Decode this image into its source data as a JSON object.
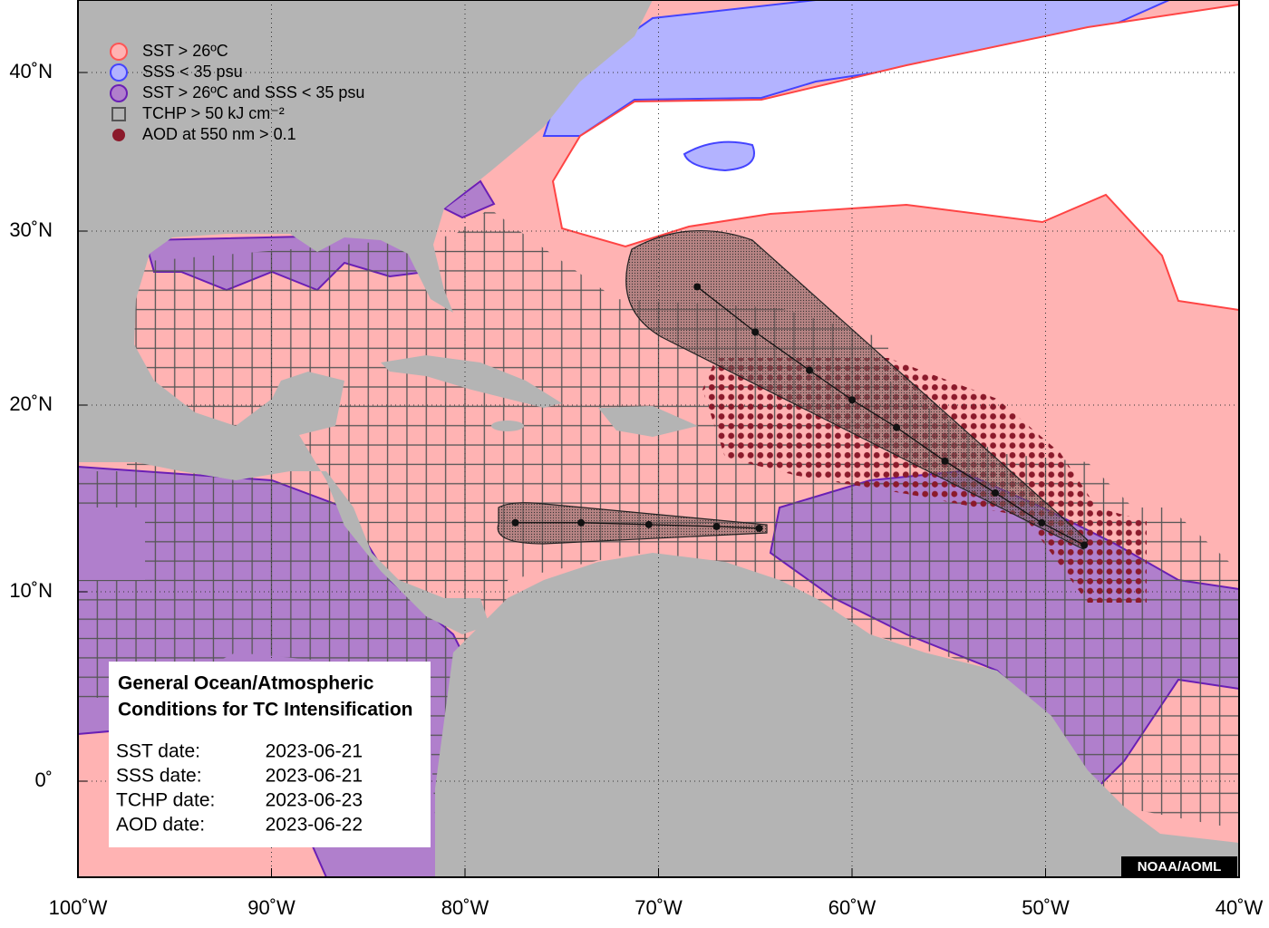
{
  "legend": [
    {
      "label": "SST > 26ºC",
      "shape": "circle",
      "fill": "#ffb3b3",
      "stroke": "#ff5555"
    },
    {
      "label": "SSS < 35 psu",
      "shape": "circle",
      "fill": "#b3b3ff",
      "stroke": "#4444ff"
    },
    {
      "label": "SST > 26ºC and SSS < 35 psu",
      "shape": "circle",
      "fill": "#b07fcc",
      "stroke": "#6a1fb5"
    },
    {
      "label": "TCHP > 50 kJ cm⁻²",
      "shape": "square",
      "fill": "none",
      "stroke": "#555555"
    },
    {
      "label": "AOD at 550 nm > 0.1",
      "shape": "dot",
      "fill": "#8b1a2b",
      "stroke": "#8b1a2b"
    }
  ],
  "info": {
    "title_lines": [
      "General Ocean/Atmospheric",
      "Conditions for TC Intensification"
    ],
    "dates": [
      {
        "label": "SST date:",
        "value": "2023-06-21"
      },
      {
        "label": "SSS date:",
        "value": "2023-06-21"
      },
      {
        "label": "TCHP date:",
        "value": "2023-06-23"
      },
      {
        "label": "AOD date:",
        "value": "2023-06-22"
      }
    ]
  },
  "credit": "NOAA/AOML",
  "axes": {
    "xticks": [
      {
        "value": -100,
        "label": "100˚W"
      },
      {
        "value": -90,
        "label": "90˚W"
      },
      {
        "value": -80,
        "label": "80˚W"
      },
      {
        "value": -70,
        "label": "70˚W"
      },
      {
        "value": -60,
        "label": "60˚W"
      },
      {
        "value": -50,
        "label": "50˚W"
      },
      {
        "value": -40,
        "label": "40˚W"
      }
    ],
    "yticks": [
      {
        "value": 0,
        "label": "0˚"
      },
      {
        "value": 10,
        "label": "10˚N"
      },
      {
        "value": 20,
        "label": "20˚N"
      },
      {
        "value": 30,
        "label": "30˚N"
      },
      {
        "value": 40,
        "label": "40˚N"
      }
    ]
  },
  "storms": [
    {
      "lon": [
        -68.0,
        -65.0,
        -62.2,
        -60.0,
        -57.7,
        -55.2,
        -52.6,
        -50.2,
        -48.0
      ],
      "lat": [
        26.8,
        24.2,
        22.0,
        20.3,
        18.8,
        17.0,
        15.3,
        13.7,
        12.5
      ]
    },
    {
      "lon": [
        -77.4,
        -74.0,
        -70.5,
        -67.0,
        -64.8
      ],
      "lat": [
        13.7,
        13.7,
        13.6,
        13.5,
        13.4
      ]
    }
  ]
}
